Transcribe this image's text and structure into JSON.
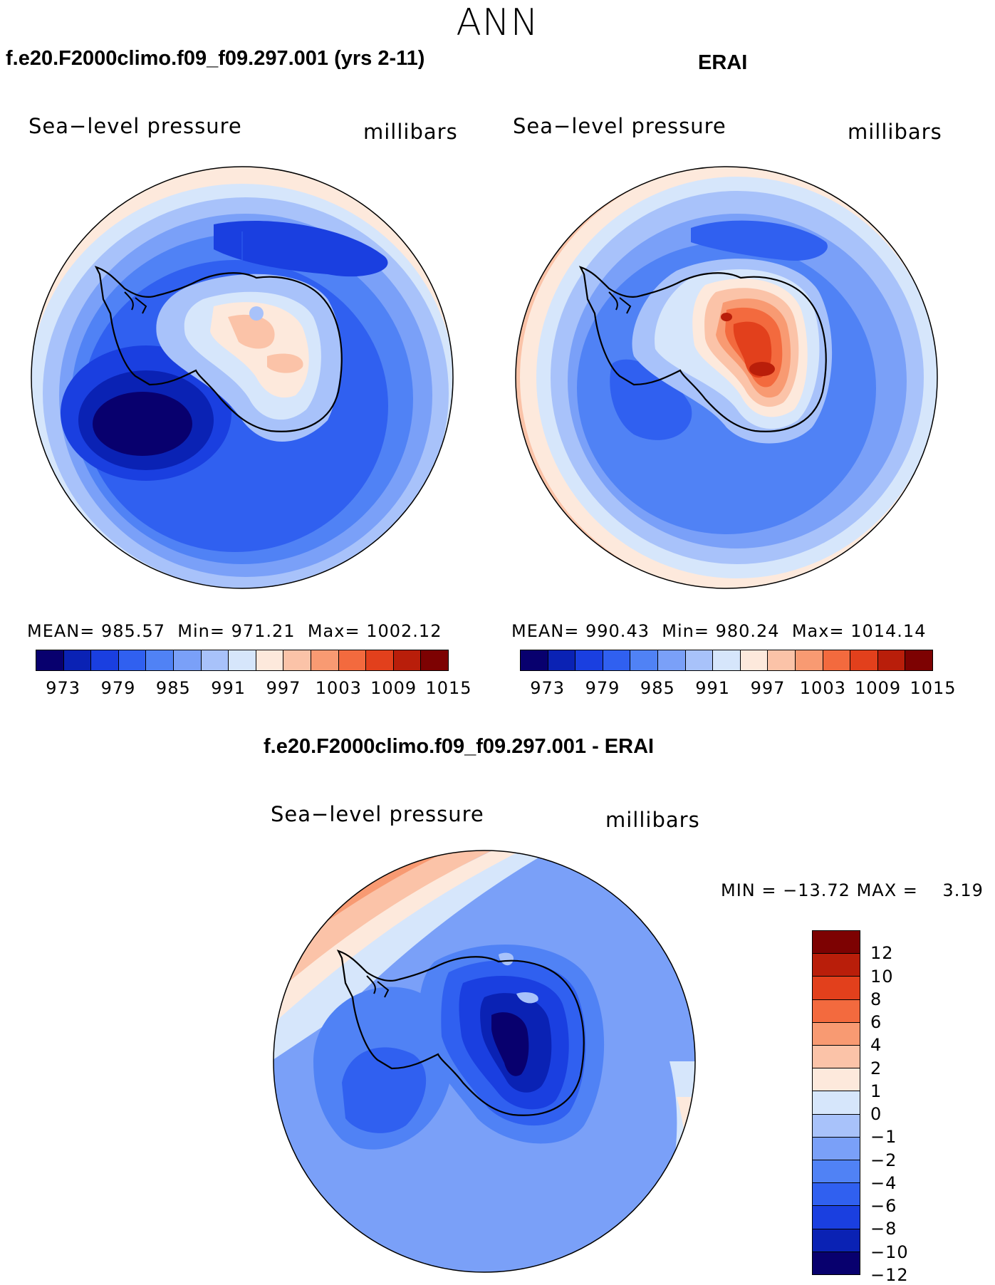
{
  "title": "ANN",
  "panels": {
    "left": {
      "title": "f.e20.F2000climo.f09_f09.297.001 (yrs 2-11)",
      "variable": "Sea−level pressure",
      "units": "millibars",
      "stats": {
        "mean_label": "MEAN=",
        "mean": "985.57",
        "min_label": "Min=",
        "min": "971.21",
        "max_label": "Max=",
        "max": "1002.12"
      }
    },
    "right": {
      "title": "ERAI",
      "variable": "Sea−level pressure",
      "units": "millibars",
      "stats": {
        "mean_label": "MEAN=",
        "mean": "990.43",
        "min_label": "Min=",
        "min": "980.24",
        "max_label": "Max=",
        "max": "1014.14"
      }
    },
    "diff": {
      "title": "f.e20.F2000climo.f09_f09.297.001 - ERAI",
      "variable": "Sea−level pressure",
      "units": "millibars",
      "stats": {
        "min_label": "MIN =",
        "min": "−13.72",
        "max_label": "MAX =",
        "max": "3.19"
      }
    }
  },
  "colorbar_abs": {
    "colors": [
      "#08006e",
      "#0a22b4",
      "#1a3fe0",
      "#3060f0",
      "#5082f5",
      "#7aa0f8",
      "#a8c2fa",
      "#d6e6fb",
      "#fde9dc",
      "#fbc3a8",
      "#f89a72",
      "#f36a3e",
      "#e2401c",
      "#b91e0a",
      "#7d0202"
    ],
    "tick_labels": [
      "973",
      "979",
      "985",
      "991",
      "997",
      "1003",
      "1009",
      "1015"
    ]
  },
  "colorbar_diff": {
    "colors": [
      "#7d0202",
      "#b91e0a",
      "#e2401c",
      "#f36a3e",
      "#f89a72",
      "#fbc3a8",
      "#fde9dc",
      "#d6e6fb",
      "#a8c2fa",
      "#7aa0f8",
      "#5082f5",
      "#3060f0",
      "#1a3fe0",
      "#0a22b4",
      "#08006e"
    ],
    "tick_labels": [
      "12",
      "10",
      "8",
      "6",
      "4",
      "2",
      "1",
      "0",
      "−1",
      "−2",
      "−4",
      "−6",
      "−8",
      "−10",
      "−12"
    ]
  },
  "map_colors": {
    "ocean_mid": "#5082f5",
    "coast": "#000000"
  }
}
